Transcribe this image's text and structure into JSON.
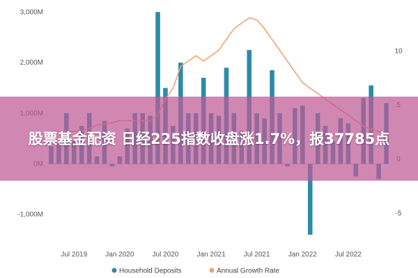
{
  "headline": "股票基金配资 日经225指数收盘涨1.7%，报37785点",
  "colors": {
    "bars": "#2b8ba8",
    "line": "#f2a271",
    "banner": "#be5a96"
  },
  "chart_data": {
    "type": "bar",
    "legend_position": "bottom",
    "grid": false,
    "y_left": {
      "range": [
        -1500,
        3100
      ],
      "ticks": [
        3000,
        2000,
        1000,
        0,
        -1000
      ],
      "tick_labels": [
        "3,000M",
        "2,000M",
        "1,000M",
        "0M",
        "-1,000M"
      ]
    },
    "y_right": {
      "range": [
        -7.5,
        14
      ],
      "ticks": [
        10,
        5,
        0,
        -5
      ],
      "tick_labels": [
        "10",
        "5",
        "0",
        "-5"
      ]
    },
    "x_ticks": [
      {
        "label": "Jul 2019",
        "index": 3
      },
      {
        "label": "Jan 2020",
        "index": 9
      },
      {
        "label": "Jul 2020",
        "index": 15
      },
      {
        "label": "Jan 2021",
        "index": 21
      },
      {
        "label": "Jul 2021",
        "index": 27
      },
      {
        "label": "Jan 2022",
        "index": 33
      },
      {
        "label": "Jul 2022",
        "index": 39
      }
    ],
    "series": [
      {
        "name": "Household Deposits",
        "type": "bar",
        "values": [
          350,
          400,
          1000,
          450,
          750,
          1000,
          150,
          850,
          -50,
          150,
          700,
          1000,
          1000,
          950,
          3000,
          1500,
          750,
          2000,
          1000,
          1000,
          1700,
          1000,
          950,
          1900,
          1000,
          650,
          2250,
          1000,
          900,
          1850,
          1000,
          -50,
          1100,
          1150,
          -1400,
          1000,
          750,
          450,
          900,
          800,
          -250,
          1300,
          1550,
          -300,
          1200
        ]
      },
      {
        "name": "Annual Growth Rate",
        "type": "line",
        "values": [
          2.5,
          2.5,
          2.5,
          2.5,
          2.6,
          2.8,
          3.1,
          3.2,
          3.3,
          3.5,
          3.5,
          3.5,
          3.5,
          3.5,
          4.0,
          5.5,
          6.5,
          8.5,
          9.0,
          9.5,
          9.0,
          9.5,
          10.0,
          11.0,
          12.0,
          12.5,
          13.0,
          12.8,
          12.0,
          11.0,
          10.0,
          9.0,
          8.0,
          7.0,
          6.5,
          6.0,
          5.5,
          5.0,
          4.5,
          4.0,
          3.5,
          3.0,
          2.7,
          2.5,
          2.4
        ]
      }
    ]
  }
}
